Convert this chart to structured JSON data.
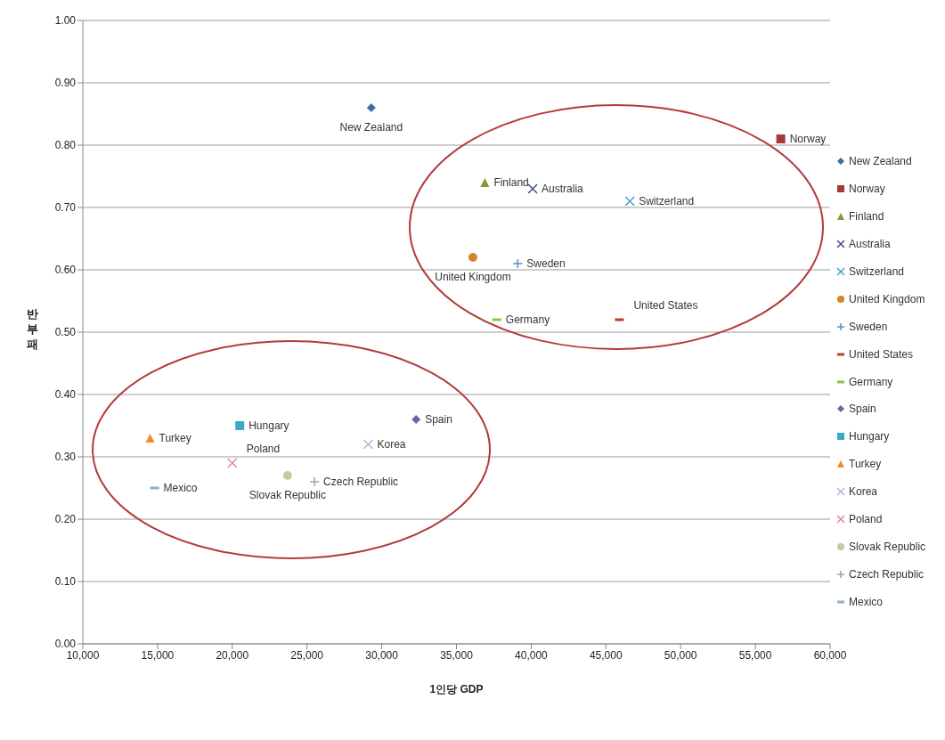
{
  "chart_data": {
    "type": "scatter",
    "xlabel": "1인당 GDP",
    "ylabel": "반부패",
    "xlim": [
      10000,
      60000
    ],
    "ylim": [
      0,
      1
    ],
    "xticks": [
      {
        "value": 10000,
        "label": "10,000"
      },
      {
        "value": 15000,
        "label": "15,000"
      },
      {
        "value": 20000,
        "label": "20,000"
      },
      {
        "value": 25000,
        "label": "25,000"
      },
      {
        "value": 30000,
        "label": "30,000"
      },
      {
        "value": 35000,
        "label": "35,000"
      },
      {
        "value": 40000,
        "label": "40,000"
      },
      {
        "value": 45000,
        "label": "45,000"
      },
      {
        "value": 50000,
        "label": "50,000"
      },
      {
        "value": 55000,
        "label": "55,000"
      },
      {
        "value": 60000,
        "label": "60,000"
      }
    ],
    "yticks": [
      {
        "value": 0,
        "label": "0.00"
      },
      {
        "value": 0.1,
        "label": "0.10"
      },
      {
        "value": 0.2,
        "label": "0.20"
      },
      {
        "value": 0.3,
        "label": "0.30"
      },
      {
        "value": 0.4,
        "label": "0.40"
      },
      {
        "value": 0.5,
        "label": "0.50"
      },
      {
        "value": 0.6,
        "label": "0.60"
      },
      {
        "value": 0.7,
        "label": "0.70"
      },
      {
        "value": 0.8,
        "label": "0.80"
      },
      {
        "value": 0.9,
        "label": "0.90"
      },
      {
        "value": 1,
        "label": "1.00"
      }
    ],
    "grid": "y",
    "legend": "right",
    "series": [
      {
        "name": "New Zealand",
        "color": "#3a6ea5",
        "marker": "diamond",
        "x": [
          29300
        ],
        "values": [
          0.86
        ]
      },
      {
        "name": "Norway",
        "color": "#a33a36",
        "marker": "square",
        "x": [
          56700
        ],
        "values": [
          0.81
        ]
      },
      {
        "name": "Finland",
        "color": "#7f9a3e",
        "marker": "triangle",
        "x": [
          36900
        ],
        "values": [
          0.74
        ]
      },
      {
        "name": "Australia",
        "color": "#3e4f7f",
        "marker": "cross",
        "x": [
          40100
        ],
        "values": [
          0.73
        ]
      },
      {
        "name": "Switzerland",
        "color": "#4aa0c8",
        "marker": "cross",
        "x": [
          46600
        ],
        "values": [
          0.71
        ]
      },
      {
        "name": "United Kingdom",
        "color": "#d9822b",
        "marker": "circle",
        "x": [
          36100
        ],
        "values": [
          0.62
        ]
      },
      {
        "name": "Sweden",
        "color": "#5f8ac8",
        "marker": "plus",
        "x": [
          39100
        ],
        "values": [
          0.61
        ]
      },
      {
        "name": "United States",
        "color": "#c0392b",
        "x": [
          45900
        ],
        "values": [
          0.52
        ]
      },
      {
        "name": "Germany",
        "color": "#8cc63f",
        "x": [
          37700
        ],
        "values": [
          0.52
        ]
      },
      {
        "name": "Spain",
        "color": "#7a5ea8",
        "marker": "diamond",
        "x": [
          32300
        ],
        "values": [
          0.36
        ]
      },
      {
        "name": "Hungary",
        "color": "#3aa9c9",
        "marker": "square",
        "x": [
          20500
        ],
        "values": [
          0.35
        ]
      },
      {
        "name": "Turkey",
        "color": "#f08a30",
        "marker": "triangle",
        "x": [
          14500
        ],
        "values": [
          0.33
        ]
      },
      {
        "name": "Korea",
        "color": "#a8b8d8",
        "marker": "cross",
        "x": [
          29100
        ],
        "values": [
          0.32
        ]
      },
      {
        "name": "Poland",
        "color": "#e08890",
        "marker": "cross",
        "x": [
          20000
        ],
        "values": [
          0.29
        ]
      },
      {
        "name": "Slovak Republic",
        "color": "#c3cba0",
        "marker": "circle",
        "x": [
          23700
        ],
        "values": [
          0.27
        ]
      },
      {
        "name": "Czech Republic",
        "color": "#a0a0a0",
        "marker": "plus",
        "x": [
          25500
        ],
        "values": [
          0.26
        ]
      },
      {
        "name": "Mexico",
        "color": "#8fb0c8",
        "x": [
          14800
        ],
        "values": [
          0.25
        ]
      }
    ]
  }
}
